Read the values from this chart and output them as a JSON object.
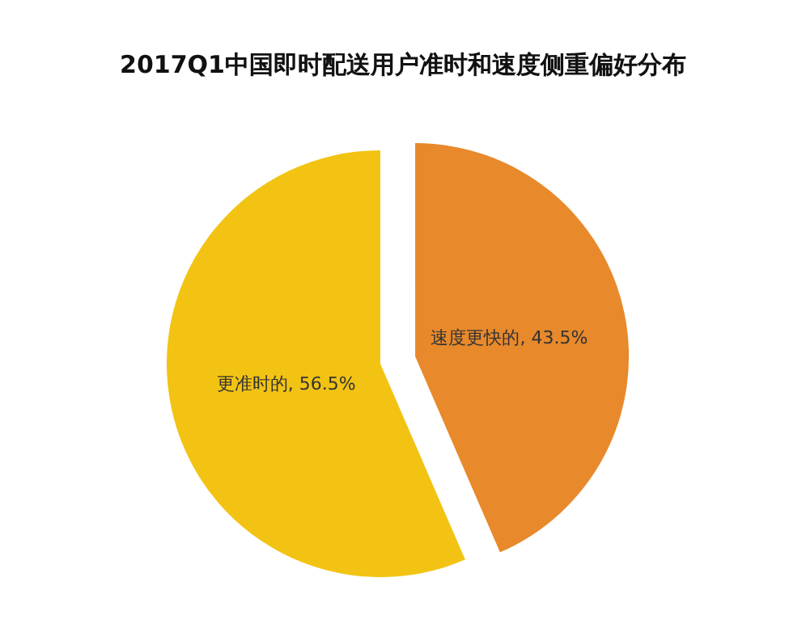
{
  "chart_data": {
    "type": "pie",
    "title": "2017Q1中国即时配送用户准时和速度侧重偏好分布",
    "categories": [
      "速度更快的",
      "更准时的"
    ],
    "values": [
      43.5,
      56.5
    ],
    "value_labels": [
      ", 43.5%",
      ", 56.5%"
    ],
    "colors": [
      "#e8892b",
      "#f2c313"
    ]
  }
}
